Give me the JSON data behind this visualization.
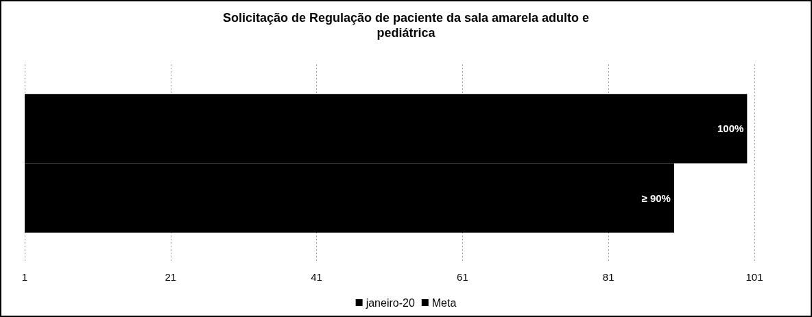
{
  "chart_data": {
    "type": "bar",
    "orientation": "horizontal",
    "title": "Solicitação de Regulação de paciente da sala amarela adulto e\npediátrica",
    "categories": [
      null
    ],
    "series": [
      {
        "name": "janeiro-20",
        "color": "#000000",
        "values": [
          100
        ],
        "value_labels": [
          "100%"
        ]
      },
      {
        "name": "Meta",
        "color": "#000000",
        "values": [
          90
        ],
        "value_labels": [
          "≥ 90%"
        ]
      }
    ],
    "xlim": [
      1,
      101
    ],
    "xticks": [
      1,
      21,
      41,
      61,
      81,
      101
    ],
    "grid": "x",
    "legend": "bottom"
  }
}
